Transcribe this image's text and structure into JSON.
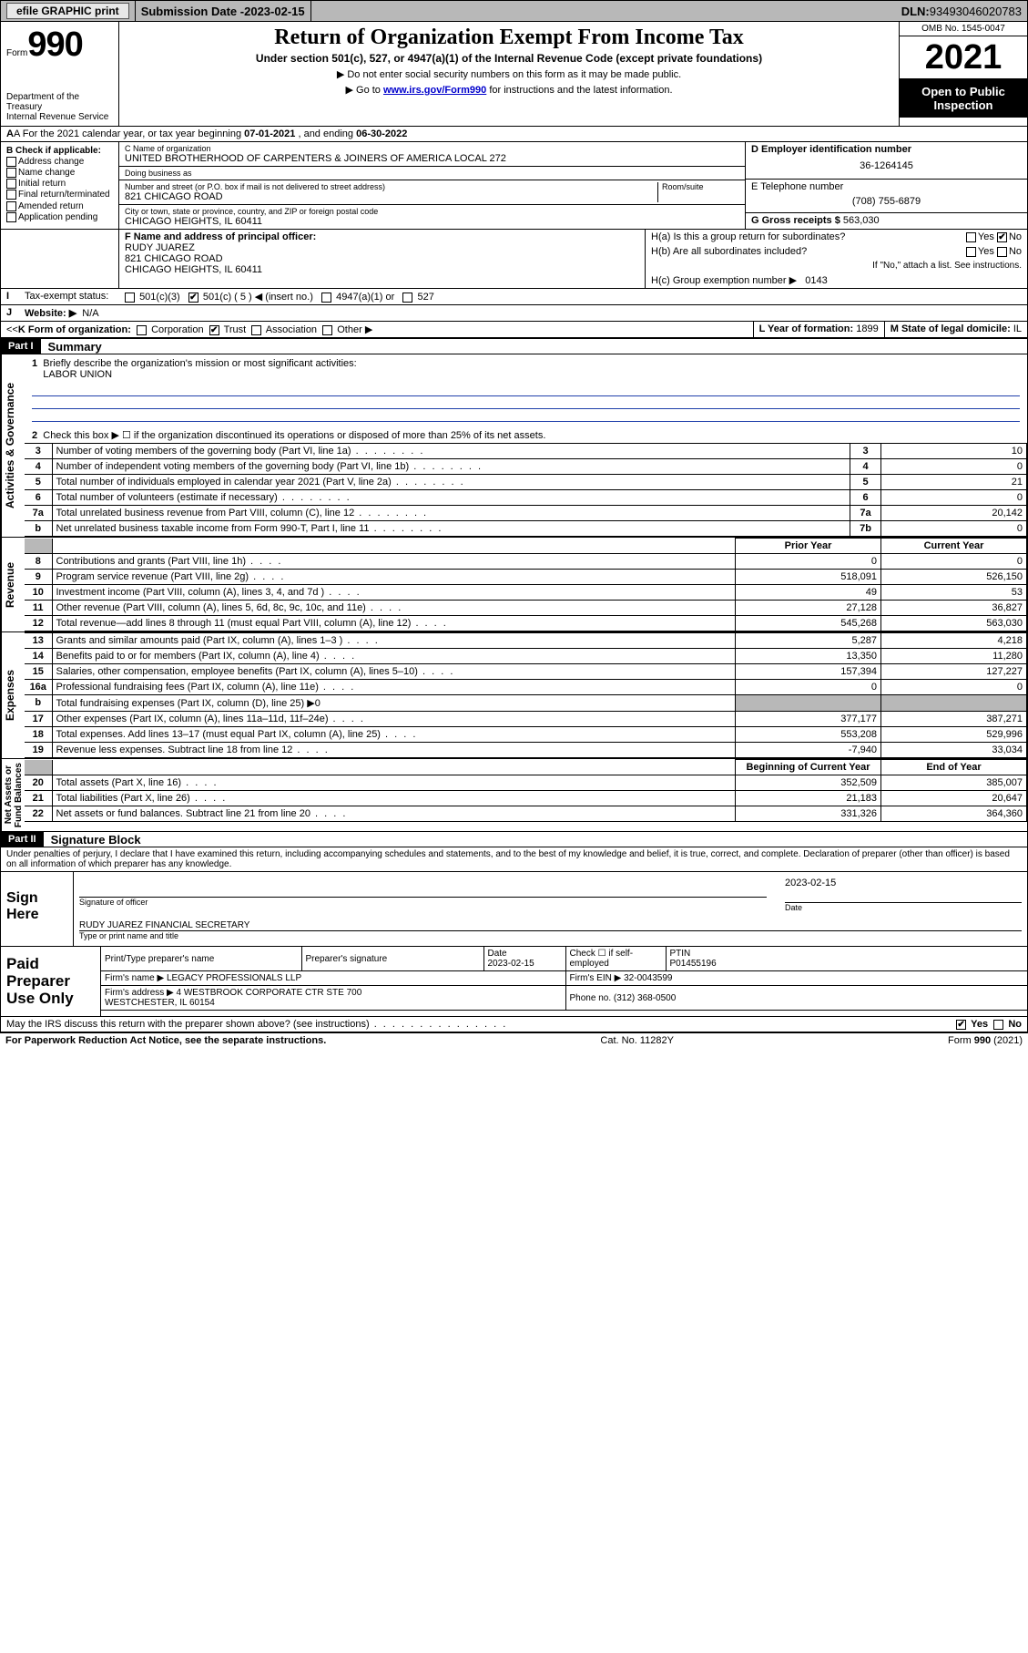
{
  "topbar": {
    "efile": "efile GRAPHIC print",
    "subdate_label": "Submission Date - ",
    "subdate": "2023-02-15",
    "dln_label": "DLN: ",
    "dln": "93493046020783"
  },
  "header": {
    "form_word": "Form",
    "form_no": "990",
    "dept": "Department of the Treasury\nInternal Revenue Service",
    "title": "Return of Organization Exempt From Income Tax",
    "sub": "Under section 501(c), 527, or 4947(a)(1) of the Internal Revenue Code (except private foundations)",
    "note1_pre": "▶ Do not enter social security numbers on this form as it may be made public.",
    "note2_pre": "▶ Go to ",
    "note2_link": "www.irs.gov/Form990",
    "note2_post": " for instructions and the latest information.",
    "omb": "OMB No. 1545-0047",
    "year": "2021",
    "open": "Open to Public Inspection"
  },
  "period": {
    "a_pre": "A For the 2021 calendar year, or tax year beginning ",
    "begin": "07-01-2021",
    "mid": " , and ending ",
    "end": "06-30-2022"
  },
  "B": {
    "label": "B Check if applicable:",
    "opts": [
      "Address change",
      "Name change",
      "Initial return",
      "Final return/terminated",
      "Amended return",
      "Application pending"
    ]
  },
  "C": {
    "name_lbl": "C Name of organization",
    "name": "UNITED BROTHERHOOD OF CARPENTERS & JOINERS OF AMERICA LOCAL 272",
    "dba_lbl": "Doing business as",
    "dba": "",
    "addr_lbl": "Number and street (or P.O. box if mail is not delivered to street address)",
    "room_lbl": "Room/suite",
    "addr": "821 CHICAGO ROAD",
    "city_lbl": "City or town, state or province, country, and ZIP or foreign postal code",
    "city": "CHICAGO HEIGHTS, IL  60411"
  },
  "D": {
    "lbl": "D Employer identification number",
    "val": "36-1264145"
  },
  "E": {
    "lbl": "E Telephone number",
    "val": "(708) 755-6879"
  },
  "G": {
    "lbl": "G Gross receipts $",
    "val": "563,030"
  },
  "F": {
    "lbl": "F  Name and address of principal officer:",
    "name": "RUDY JUAREZ",
    "addr1": "821 CHICAGO ROAD",
    "addr2": "CHICAGO HEIGHTS, IL  60411"
  },
  "H": {
    "a": "H(a)  Is this a group return for subordinates?",
    "b": "H(b)  Are all subordinates included?",
    "b_note": "If \"No,\" attach a list. See instructions.",
    "c_lbl": "H(c)  Group exemption number ▶",
    "c_val": "0143",
    "yes": "Yes",
    "no": "No"
  },
  "I": {
    "lbl": "Tax-exempt status:",
    "c3": "501(c)(3)",
    "c": "501(c) ( 5 ) ◀ (insert no.)",
    "a1": "4947(a)(1) or",
    "s527": "527"
  },
  "J": {
    "lbl": "Website: ▶",
    "val": "N/A"
  },
  "K": {
    "lbl": "K Form of organization:",
    "opts": [
      "Corporation",
      "Trust",
      "Association",
      "Other ▶"
    ],
    "checked": 1
  },
  "L": {
    "lbl": "L Year of formation:",
    "val": "1899"
  },
  "M": {
    "lbl": "M State of legal domicile:",
    "val": "IL"
  },
  "part1": {
    "hdr": "Part I",
    "title": "Summary",
    "line1_lbl": "Briefly describe the organization's mission or most significant activities:",
    "line1_val": "LABOR UNION",
    "line2": "Check this box ▶ ☐  if the organization discontinued its operations or disposed of more than 25% of its net assets.",
    "rows_gov": [
      {
        "n": "3",
        "t": "Number of voting members of the governing body (Part VI, line 1a)",
        "box": "3",
        "v": "10"
      },
      {
        "n": "4",
        "t": "Number of independent voting members of the governing body (Part VI, line 1b)",
        "box": "4",
        "v": "0"
      },
      {
        "n": "5",
        "t": "Total number of individuals employed in calendar year 2021 (Part V, line 2a)",
        "box": "5",
        "v": "21"
      },
      {
        "n": "6",
        "t": "Total number of volunteers (estimate if necessary)",
        "box": "6",
        "v": "0"
      },
      {
        "n": "7a",
        "t": "Total unrelated business revenue from Part VIII, column (C), line 12",
        "box": "7a",
        "v": "20,142"
      },
      {
        "n": "b",
        "t": "Net unrelated business taxable income from Form 990-T, Part I, line 11",
        "box": "7b",
        "v": "0"
      }
    ],
    "col_prior": "Prior Year",
    "col_curr": "Current Year",
    "rev": [
      {
        "n": "8",
        "t": "Contributions and grants (Part VIII, line 1h)",
        "p": "0",
        "c": "0"
      },
      {
        "n": "9",
        "t": "Program service revenue (Part VIII, line 2g)",
        "p": "518,091",
        "c": "526,150"
      },
      {
        "n": "10",
        "t": "Investment income (Part VIII, column (A), lines 3, 4, and 7d )",
        "p": "49",
        "c": "53"
      },
      {
        "n": "11",
        "t": "Other revenue (Part VIII, column (A), lines 5, 6d, 8c, 9c, 10c, and 11e)",
        "p": "27,128",
        "c": "36,827"
      },
      {
        "n": "12",
        "t": "Total revenue—add lines 8 through 11 (must equal Part VIII, column (A), line 12)",
        "p": "545,268",
        "c": "563,030"
      }
    ],
    "exp": [
      {
        "n": "13",
        "t": "Grants and similar amounts paid (Part IX, column (A), lines 1–3 )",
        "p": "5,287",
        "c": "4,218"
      },
      {
        "n": "14",
        "t": "Benefits paid to or for members (Part IX, column (A), line 4)",
        "p": "13,350",
        "c": "11,280"
      },
      {
        "n": "15",
        "t": "Salaries, other compensation, employee benefits (Part IX, column (A), lines 5–10)",
        "p": "157,394",
        "c": "127,227"
      },
      {
        "n": "16a",
        "t": "Professional fundraising fees (Part IX, column (A), line 11e)",
        "p": "0",
        "c": "0"
      },
      {
        "n": "b",
        "t": "Total fundraising expenses (Part IX, column (D), line 25) ▶0",
        "p": "",
        "c": "",
        "shade": true
      },
      {
        "n": "17",
        "t": "Other expenses (Part IX, column (A), lines 11a–11d, 11f–24e)",
        "p": "377,177",
        "c": "387,271"
      },
      {
        "n": "18",
        "t": "Total expenses. Add lines 13–17 (must equal Part IX, column (A), line 25)",
        "p": "553,208",
        "c": "529,996"
      },
      {
        "n": "19",
        "t": "Revenue less expenses. Subtract line 18 from line 12",
        "p": "-7,940",
        "c": "33,034"
      }
    ],
    "col_boy": "Beginning of Current Year",
    "col_eoy": "End of Year",
    "na": [
      {
        "n": "20",
        "t": "Total assets (Part X, line 16)",
        "p": "352,509",
        "c": "385,007"
      },
      {
        "n": "21",
        "t": "Total liabilities (Part X, line 26)",
        "p": "21,183",
        "c": "20,647"
      },
      {
        "n": "22",
        "t": "Net assets or fund balances. Subtract line 21 from line 20",
        "p": "331,326",
        "c": "364,360"
      }
    ],
    "side_gov": "Activities & Governance",
    "side_rev": "Revenue",
    "side_exp": "Expenses",
    "side_na": "Net Assets or\nFund Balances"
  },
  "part2": {
    "hdr": "Part II",
    "title": "Signature Block",
    "decl": "Under penalties of perjury, I declare that I have examined this return, including accompanying schedules and statements, and to the best of my knowledge and belief, it is true, correct, and complete. Declaration of preparer (other than officer) is based on all information of which preparer has any knowledge.",
    "sign_here": "Sign Here",
    "sig_officer": "Signature of officer",
    "sig_date": "Date",
    "sig_date_val": "2023-02-15",
    "officer_name": "RUDY JUAREZ  FINANCIAL SECRETARY",
    "type_lbl": "Type or print name and title",
    "paid": "Paid Preparer Use Only",
    "pt_name_lbl": "Print/Type preparer's name",
    "pt_sig_lbl": "Preparer's signature",
    "pt_date_lbl": "Date",
    "pt_date": "2023-02-15",
    "pt_check_lbl": "Check ☐ if self-employed",
    "ptin_lbl": "PTIN",
    "ptin": "P01455196",
    "firm_name_lbl": "Firm's name   ▶",
    "firm_name": "LEGACY PROFESSIONALS LLP",
    "firm_ein_lbl": "Firm's EIN ▶",
    "firm_ein": "32-0043599",
    "firm_addr_lbl": "Firm's address ▶",
    "firm_addr": "4 WESTBROOK CORPORATE CTR STE 700\nWESTCHESTER, IL  60154",
    "phone_lbl": "Phone no.",
    "phone": "(312) 368-0500",
    "discuss": "May the IRS discuss this return with the preparer shown above? (see instructions)"
  },
  "footer": {
    "pra": "For Paperwork Reduction Act Notice, see the separate instructions.",
    "cat": "Cat. No. 11282Y",
    "form": "Form 990 (2021)"
  }
}
